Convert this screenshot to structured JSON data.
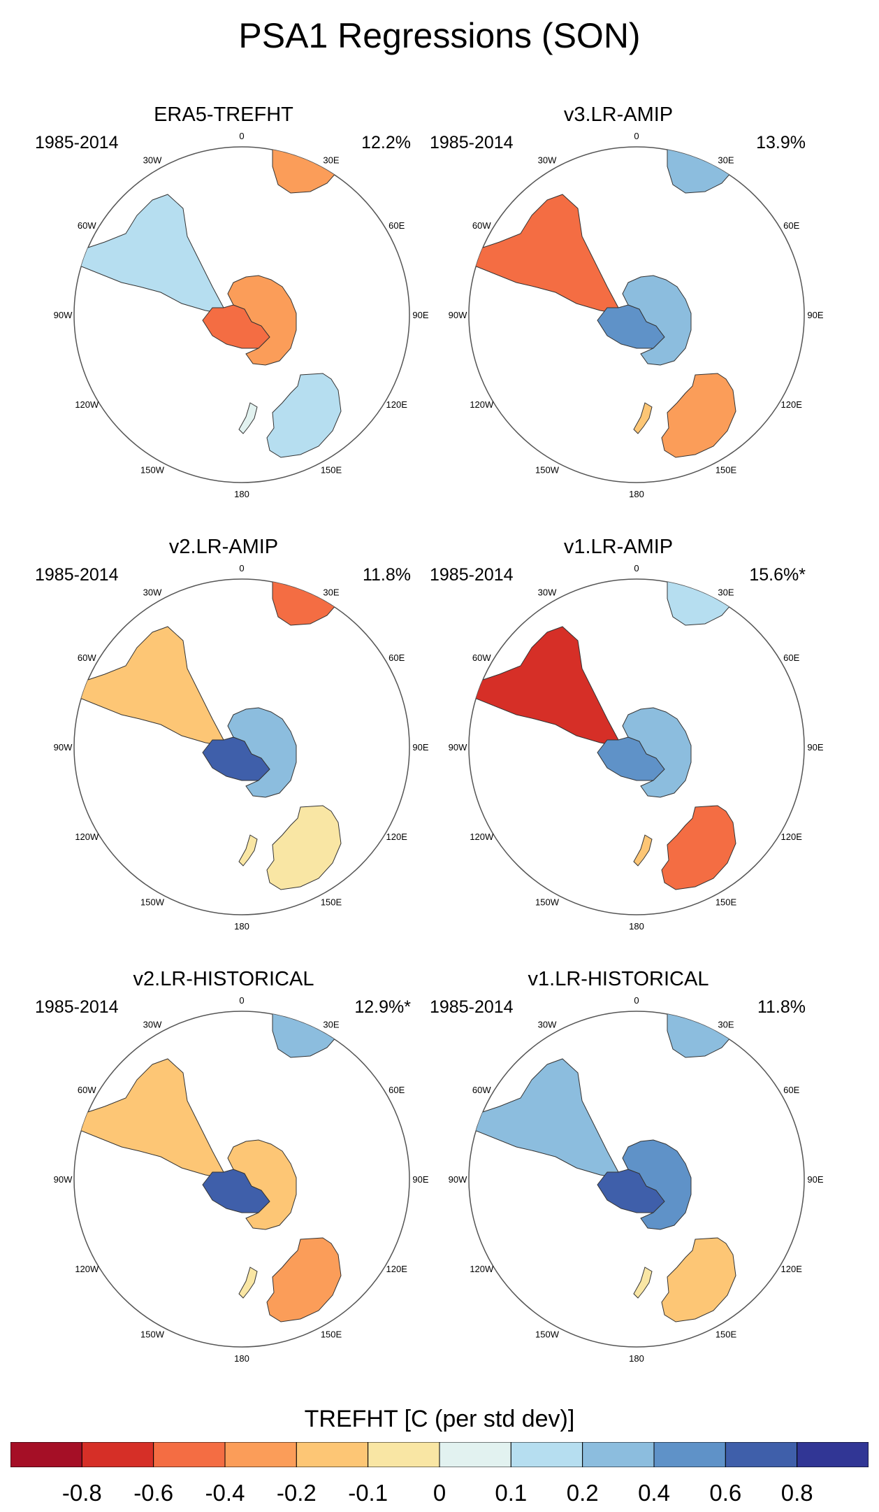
{
  "figure": {
    "title": "PSA1 Regressions (SON)"
  },
  "chart_data": {
    "type": "heatmap",
    "title": "PSA1 Regressions (SON)",
    "projection": "south polar stereographic",
    "longitude_labels": [
      "0",
      "30E",
      "60E",
      "90E",
      "120E",
      "150E",
      "180",
      "150W",
      "120W",
      "90W",
      "60W",
      "30W"
    ],
    "panels": [
      {
        "name": "ERA5-TREFHT",
        "period": "1985-2014",
        "variance_explained": "12.2%",
        "regions": {
          "south_america": 0.1,
          "south_africa": -0.3,
          "antarctica_west": -0.6,
          "antarctica_east": -0.4,
          "australia": 0.1
        }
      },
      {
        "name": "v3.LR-AMIP",
        "period": "1985-2014",
        "variance_explained": "13.9%",
        "regions": {
          "south_america": -0.5,
          "south_africa": 0.3,
          "antarctica_west": 0.5,
          "antarctica_east": 0.3,
          "australia": -0.4
        }
      },
      {
        "name": "v2.LR-AMIP",
        "period": "1985-2014",
        "variance_explained": "11.8%",
        "regions": {
          "south_america": -0.15,
          "south_africa": -0.5,
          "antarctica_west": 0.7,
          "antarctica_east": 0.3,
          "australia": -0.1
        }
      },
      {
        "name": "v1.LR-AMIP",
        "period": "1985-2014",
        "variance_explained": "15.6%*",
        "regions": {
          "south_america": -0.7,
          "south_africa": 0.1,
          "antarctica_west": 0.5,
          "antarctica_east": 0.3,
          "australia": -0.5
        }
      },
      {
        "name": "v2.LR-HISTORICAL",
        "period": "1985-2014",
        "variance_explained": "12.9%*",
        "regions": {
          "south_america": -0.15,
          "south_africa": 0.3,
          "antarctica_west": 0.7,
          "antarctica_east": -0.15,
          "australia": -0.3
        }
      },
      {
        "name": "v1.LR-HISTORICAL",
        "period": "1985-2014",
        "variance_explained": "11.8%",
        "regions": {
          "south_america": 0.3,
          "south_africa": 0.3,
          "antarctica_west": 0.6,
          "antarctica_east": 0.4,
          "australia": -0.2
        }
      }
    ],
    "colorbar": {
      "title": "TREFHT [C (per std dev)]",
      "tick_labels": [
        "-0.8",
        "-0.6",
        "-0.4",
        "-0.2",
        "-0.1",
        "0",
        "0.1",
        "0.2",
        "0.4",
        "0.6",
        "0.8"
      ],
      "colors": [
        "#a50f26",
        "#d62f27",
        "#f46d43",
        "#fb9d59",
        "#fdc675",
        "#f9e6a4",
        "#e2f2f0",
        "#b6def0",
        "#8cbdde",
        "#5f92c8",
        "#3f5faa",
        "#313695"
      ]
    }
  }
}
